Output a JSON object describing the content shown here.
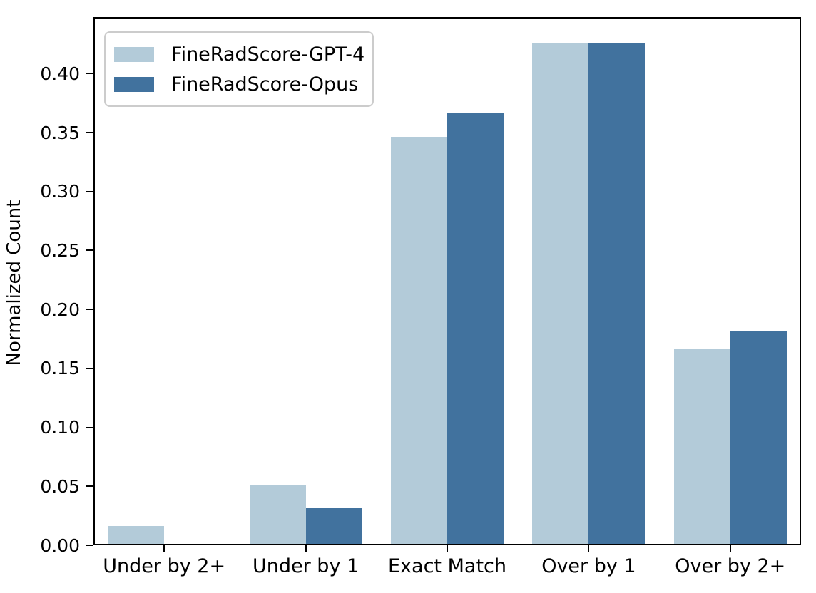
{
  "chart_data": {
    "type": "bar",
    "title": "",
    "ylabel": "Normalized Count",
    "xlabel": "",
    "categories": [
      "Under by 2+",
      "Under by 1",
      "Exact Match",
      "Over by 1",
      "Over by 2+"
    ],
    "series": [
      {
        "name": "FineRadScore-GPT-4",
        "color": "#b3cbd9",
        "values": [
          0.015,
          0.05,
          0.345,
          0.425,
          0.165
        ]
      },
      {
        "name": "FineRadScore-Opus",
        "color": "#41729e",
        "values": [
          0.0,
          0.03,
          0.365,
          0.425,
          0.18
        ]
      }
    ],
    "ylim": [
      0,
      0.448
    ],
    "ytick_labels": [
      "0.00",
      "0.05",
      "0.10",
      "0.15",
      "0.20",
      "0.25",
      "0.30",
      "0.35",
      "0.40"
    ],
    "grid": false,
    "legend_position": "upper left"
  },
  "colors": {
    "spine": "#000000",
    "legend_border": "#cccccc",
    "background": "#ffffff",
    "text": "#000000"
  }
}
